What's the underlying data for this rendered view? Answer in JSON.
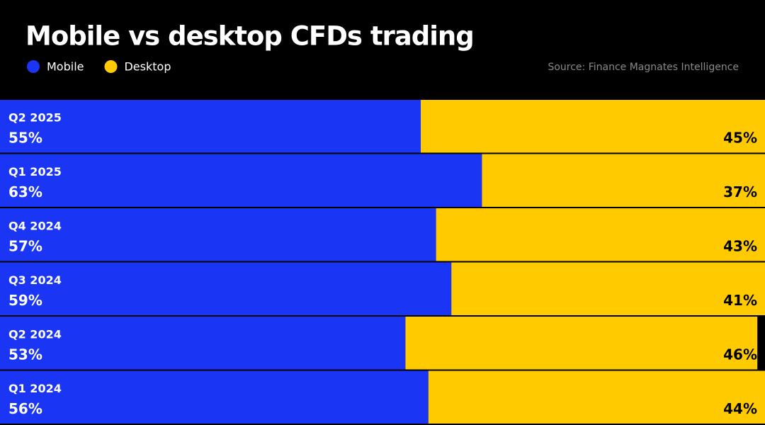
{
  "chart_data": {
    "type": "bar",
    "title": "Mobile vs desktop CFDs trading",
    "source": "Source: Finance Magnates Intelligence",
    "categories": [
      "Q2 2025",
      "Q1 2025",
      "Q4 2024",
      "Q3 2024",
      "Q2 2024",
      "Q1 2024"
    ],
    "xlim": [
      0,
      100
    ],
    "series": [
      {
        "name": "Mobile",
        "color": "#1a36f4",
        "values": [
          55,
          63,
          57,
          59,
          53,
          56
        ],
        "value_labels": [
          "55%",
          "63%",
          "57%",
          "59%",
          "53%",
          "56%"
        ]
      },
      {
        "name": "Desktop",
        "color": "#ffcb00",
        "values": [
          45,
          37,
          43,
          41,
          46,
          44
        ],
        "value_labels": [
          "45%",
          "37%",
          "43%",
          "41%",
          "46%",
          "44%"
        ]
      }
    ]
  }
}
